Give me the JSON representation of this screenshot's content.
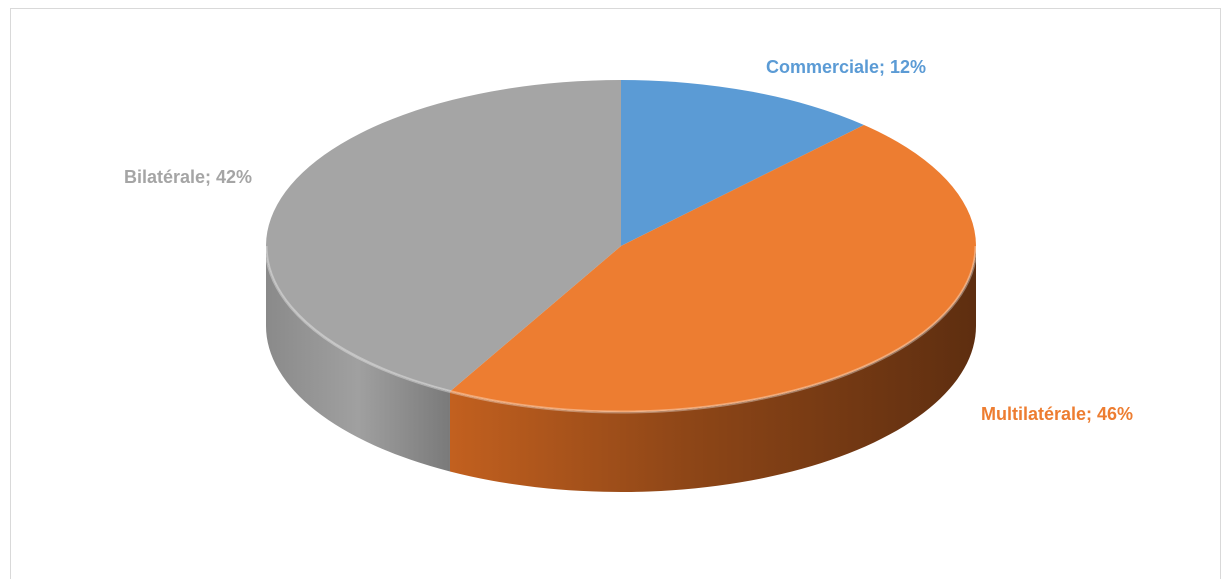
{
  "chart_data": {
    "type": "pie",
    "style": "3d",
    "categories": [
      "Commerciale",
      "Multilatérale",
      "Bilatérale"
    ],
    "values": [
      12,
      46,
      42
    ],
    "unit": "%",
    "colors": [
      "#5B9BD5",
      "#ED7D31",
      "#A5A5A5"
    ],
    "labels": [
      {
        "text": "Commerciale; 12%",
        "color": "#5B9BD5"
      },
      {
        "text": "Multilatérale; 46%",
        "color": "#ED7D31"
      },
      {
        "text": "Bilatérale; 42%",
        "color": "#A5A5A5"
      }
    ],
    "title": "",
    "legend": "none"
  }
}
